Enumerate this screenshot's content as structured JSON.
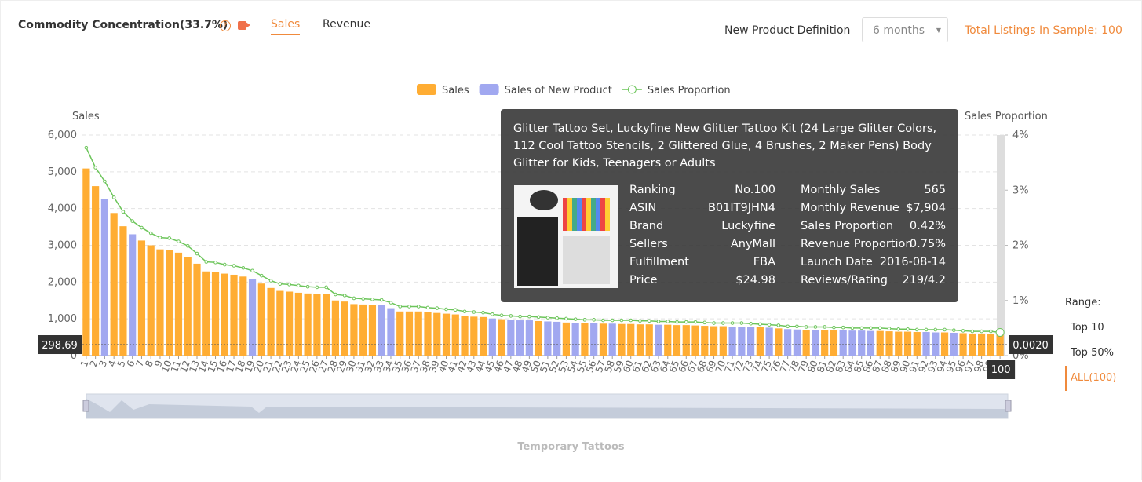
{
  "header": {
    "title": "Commodity Concentration(33.7%)",
    "tabs": [
      "Sales",
      "Revenue"
    ],
    "definition_label": "New Product Definition",
    "definition_value": "6 months",
    "total": "Total Listings In Sample: 100"
  },
  "range": {
    "label": "Range:",
    "options": [
      "Top 10",
      "Top 50%",
      "ALL(100)"
    ]
  },
  "footer": "Temporary Tattoos",
  "axis_pointer": {
    "y": 298.69,
    "y2_label": "0.0020",
    "x_label": "100"
  },
  "tooltip": {
    "title": "Glitter Tattoo Set, Luckyfine New Glitter Tattoo Kit (24 Large Glitter Colors, 112 Cool Tattoo Stencils, 2 Glittered Glue, 4 Brushes, 2 Maker Pens) Body Glitter for Kids, Teenagers or Adults",
    "left": [
      [
        "Ranking",
        "No.100"
      ],
      [
        "ASIN",
        "B01IT9JHN4"
      ],
      [
        "Brand",
        "Luckyfine"
      ],
      [
        "Sellers",
        "AnyMall"
      ],
      [
        "Fulfillment",
        "FBA"
      ],
      [
        "Price",
        "$24.98"
      ]
    ],
    "right": [
      [
        "Monthly Sales",
        "565"
      ],
      [
        "Monthly Revenue",
        "$7,904"
      ],
      [
        "Sales Proportion",
        "0.42%"
      ],
      [
        "Revenue Proportion",
        "0.75%"
      ],
      [
        "Launch Date",
        "2016-08-14"
      ],
      [
        "Reviews/Rating",
        "219/4.2"
      ]
    ]
  },
  "chart_data": {
    "type": "bar",
    "y_title": "Sales",
    "y2_title": "Sales Proportion",
    "grid": true,
    "legend": "top",
    "categories": [
      "1",
      "2",
      "3",
      "4",
      "5",
      "6",
      "7",
      "8",
      "9",
      "10",
      "11",
      "12",
      "13",
      "14",
      "15",
      "16",
      "17",
      "18",
      "19",
      "20",
      "21",
      "22",
      "23",
      "24",
      "25",
      "26",
      "27",
      "28",
      "29",
      "30",
      "31",
      "32",
      "33",
      "34",
      "35",
      "36",
      "37",
      "38",
      "39",
      "40",
      "41",
      "42",
      "43",
      "44",
      "45",
      "46",
      "47",
      "48",
      "49",
      "50",
      "51",
      "52",
      "53",
      "54",
      "55",
      "56",
      "57",
      "58",
      "59",
      "60",
      "61",
      "62",
      "63",
      "64",
      "65",
      "66",
      "67",
      "68",
      "69",
      "70",
      "71",
      "72",
      "73",
      "74",
      "75",
      "76",
      "77",
      "78",
      "79",
      "80",
      "81",
      "82",
      "83",
      "84",
      "85",
      "86",
      "87",
      "88",
      "89",
      "90",
      "91",
      "92",
      "93",
      "94",
      "95",
      "96",
      "97",
      "98",
      "99",
      "100"
    ],
    "ylim": [
      0,
      6000
    ],
    "yticks": [
      0,
      {
        "value": 1000,
        "label": "1,000"
      },
      {
        "value": 2000,
        "label": "2,000"
      },
      {
        "value": 3000,
        "label": "3,000"
      },
      {
        "value": 4000,
        "label": "4,000"
      },
      {
        "value": 5000,
        "label": "5,000"
      },
      {
        "value": 6000,
        "label": "6,000"
      }
    ],
    "y2lim": [
      0,
      4
    ],
    "y2ticks": [
      {
        "value": 0,
        "label": "0%"
      },
      {
        "value": 1,
        "label": "1%"
      },
      {
        "value": 2,
        "label": "2%"
      },
      {
        "value": 3,
        "label": "3%"
      },
      {
        "value": 4,
        "label": "4%"
      }
    ],
    "series": [
      {
        "name": "Sales",
        "type": "bar",
        "color": "#ffad33",
        "values": [
          5090,
          4610,
          null,
          3880,
          3520,
          null,
          3130,
          3000,
          2890,
          2870,
          2800,
          2680,
          2500,
          2290,
          2280,
          2230,
          2200,
          2150,
          null,
          1960,
          1840,
          1760,
          1740,
          1710,
          1690,
          1680,
          1670,
          1500,
          1470,
          1400,
          1390,
          1380,
          null,
          null,
          1200,
          1200,
          1200,
          1180,
          1160,
          1140,
          1120,
          1080,
          1060,
          1050,
          null,
          990,
          null,
          null,
          null,
          940,
          null,
          null,
          900,
          null,
          880,
          null,
          870,
          null,
          860,
          860,
          850,
          850,
          null,
          840,
          830,
          830,
          820,
          810,
          800,
          800,
          null,
          null,
          null,
          770,
          null,
          740,
          null,
          null,
          700,
          null,
          700,
          690,
          null,
          null,
          null,
          null,
          670,
          660,
          650,
          650,
          640,
          null,
          null,
          630,
          null,
          610,
          600,
          600,
          590,
          565
        ]
      },
      {
        "name": "Sales of New Product",
        "type": "bar",
        "color": "#a1a8f0",
        "values": [
          null,
          null,
          4260,
          null,
          null,
          3300,
          null,
          null,
          null,
          null,
          null,
          null,
          null,
          null,
          null,
          null,
          null,
          null,
          2080,
          null,
          null,
          null,
          null,
          null,
          null,
          null,
          null,
          null,
          null,
          null,
          null,
          null,
          1370,
          1290,
          null,
          null,
          null,
          null,
          null,
          null,
          null,
          null,
          null,
          null,
          1010,
          null,
          970,
          960,
          960,
          null,
          930,
          920,
          null,
          890,
          null,
          880,
          null,
          870,
          null,
          null,
          null,
          null,
          840,
          null,
          null,
          null,
          null,
          null,
          null,
          null,
          790,
          790,
          780,
          null,
          760,
          null,
          720,
          710,
          null,
          700,
          null,
          null,
          690,
          680,
          680,
          670,
          null,
          null,
          null,
          null,
          null,
          640,
          630,
          null,
          620,
          null,
          null,
          null,
          null,
          null
        ]
      },
      {
        "name": "Sales Proportion",
        "type": "line",
        "axis": "y2",
        "color": "#6cc55a",
        "values": [
          3.77,
          3.41,
          3.16,
          2.87,
          2.61,
          2.44,
          2.32,
          2.22,
          2.14,
          2.13,
          2.07,
          1.99,
          1.85,
          1.7,
          1.69,
          1.65,
          1.63,
          1.59,
          1.54,
          1.45,
          1.36,
          1.3,
          1.29,
          1.27,
          1.25,
          1.24,
          1.24,
          1.11,
          1.09,
          1.04,
          1.03,
          1.02,
          1.01,
          0.96,
          0.89,
          0.89,
          0.89,
          0.87,
          0.86,
          0.84,
          0.83,
          0.8,
          0.79,
          0.78,
          0.75,
          0.73,
          0.72,
          0.71,
          0.71,
          0.7,
          0.69,
          0.68,
          0.67,
          0.66,
          0.65,
          0.65,
          0.64,
          0.64,
          0.64,
          0.64,
          0.63,
          0.63,
          0.62,
          0.62,
          0.61,
          0.61,
          0.61,
          0.6,
          0.59,
          0.59,
          0.59,
          0.59,
          0.58,
          0.57,
          0.56,
          0.55,
          0.53,
          0.53,
          0.52,
          0.52,
          0.52,
          0.51,
          0.51,
          0.5,
          0.5,
          0.5,
          0.5,
          0.49,
          0.48,
          0.48,
          0.47,
          0.47,
          0.47,
          0.47,
          0.46,
          0.45,
          0.44,
          0.44,
          0.44,
          0.42
        ]
      }
    ]
  }
}
